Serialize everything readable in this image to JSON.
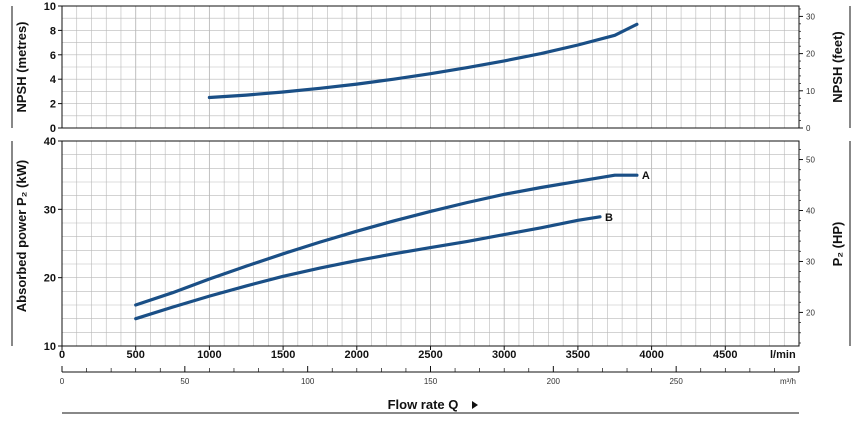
{
  "chart_data": [
    {
      "type": "line",
      "ylabel_left": "NPSH  (metres)",
      "ylabel_right": "NPSH  (feet)",
      "ylim": [
        0,
        10
      ],
      "yticks_left": [
        0,
        2,
        4,
        6,
        8,
        10
      ],
      "ylim_right": [
        0,
        32.8
      ],
      "yticks_right": [
        0,
        10,
        20,
        30
      ],
      "x": [
        1000,
        1250,
        1500,
        1750,
        2000,
        2250,
        2500,
        2750,
        3000,
        3250,
        3500,
        3750,
        3900
      ],
      "series": [
        {
          "values": [
            2.5,
            2.7,
            2.95,
            3.25,
            3.6,
            4.0,
            4.45,
            4.95,
            5.5,
            6.1,
            6.8,
            7.6,
            8.5
          ]
        }
      ],
      "grid": true
    },
    {
      "type": "line",
      "ylabel_left": "Absorbed power  P₂  (kW)",
      "ylabel_right": "P₂  (HP)",
      "ylim": [
        10,
        40
      ],
      "yticks_left": [
        10,
        20,
        30,
        40
      ],
      "ylim_right": [
        13.41,
        53.64
      ],
      "yticks_right": [
        20,
        30,
        40,
        50
      ],
      "series": [
        {
          "name": "A",
          "x": [
            500,
            750,
            1000,
            1250,
            1500,
            1750,
            2000,
            2250,
            2500,
            2750,
            3000,
            3250,
            3500,
            3750,
            3900
          ],
          "values": [
            16.0,
            17.8,
            19.8,
            21.7,
            23.5,
            25.2,
            26.8,
            28.3,
            29.7,
            31.0,
            32.2,
            33.2,
            34.1,
            35.0,
            35.0
          ]
        },
        {
          "name": "B",
          "x": [
            500,
            750,
            1000,
            1250,
            1500,
            1750,
            2000,
            2250,
            2500,
            2750,
            3000,
            3250,
            3500,
            3650
          ],
          "values": [
            14.0,
            15.7,
            17.3,
            18.8,
            20.2,
            21.4,
            22.5,
            23.5,
            24.4,
            25.3,
            26.3,
            27.3,
            28.4,
            28.9
          ]
        }
      ],
      "grid": true
    }
  ],
  "x_axis": {
    "lmin_ticks": [
      0,
      500,
      1000,
      1500,
      2000,
      2500,
      3000,
      3500,
      4000,
      4500
    ],
    "lmin_unit": "l/min",
    "m3h_ticks": [
      0,
      50,
      100,
      150,
      200,
      250
    ],
    "m3h_unit": "m³/h",
    "xlim_lmin": [
      0,
      5000
    ],
    "title": "Flow rate  Q"
  },
  "colors": {
    "curve": "#1a4f86",
    "grid": "#b9b9b9",
    "axis": "#111111"
  }
}
